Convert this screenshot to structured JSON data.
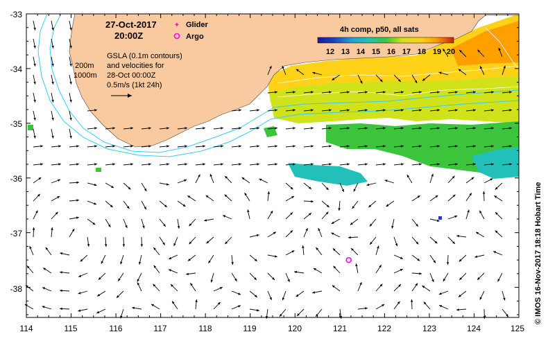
{
  "date_line": "27-Oct-2017",
  "time_line": "20:00Z",
  "legend": {
    "glider_label": "Glider",
    "argo_label": "Argo"
  },
  "info": {
    "contour_200": "200m",
    "contour_1000": "1000m",
    "gsla_line1": "GSLA (0.1m contours)",
    "gsla_line2": "and velocities for",
    "gsla_line3": "28-Oct 00:00Z",
    "scale_line": "0.5m/s (1kt 24h)"
  },
  "colorbar": {
    "title": "4h comp, p50, all sats",
    "ticks": [
      "12",
      "13",
      "14",
      "15",
      "16",
      "17",
      "18",
      "19",
      "20"
    ],
    "range": [
      12,
      20
    ]
  },
  "credit": "© IMOS 16-Nov-2017 18:18 Hobart Time",
  "axes": {
    "lon_ticks": [
      "114",
      "115",
      "116",
      "117",
      "118",
      "119",
      "120",
      "121",
      "122",
      "123",
      "124",
      "125"
    ],
    "lat_ticks": [
      "-33",
      "-34",
      "-35",
      "-36",
      "-37",
      "-38"
    ],
    "lon_range": [
      114,
      125
    ],
    "lat_range": [
      -38.55,
      -33
    ]
  },
  "argo_float": {
    "lon": 121.2,
    "lat": -37.5
  },
  "colors": {
    "land": "#f9c9a0",
    "bathy_200": "#33ccff",
    "bathy_1000": "#33ccff",
    "argo": "#ff00ff",
    "glider": "#ff00ff"
  }
}
